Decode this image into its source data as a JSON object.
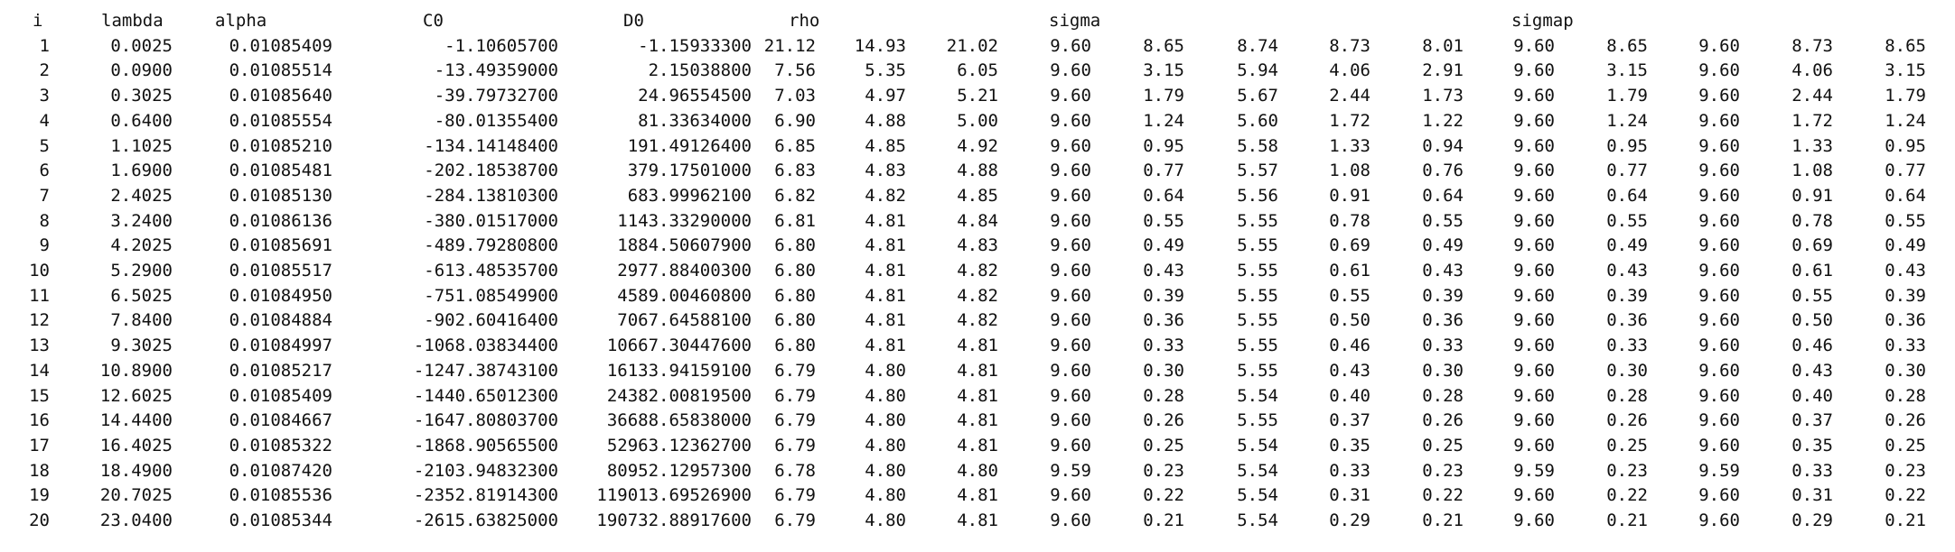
{
  "header": {
    "i": "i",
    "lambda": "lambda",
    "alpha": "alpha",
    "c0": "C0",
    "d0": "D0",
    "rho": "rho",
    "sigma": "sigma",
    "sigmap": "sigmap"
  },
  "rows": [
    [
      "1",
      "0.0025",
      "0.01085409",
      "-1.10605700",
      "-1.15933300",
      "21.12",
      "14.93",
      "21.02",
      "9.60",
      "8.65",
      "8.74",
      "8.73",
      "8.01",
      "9.60",
      "8.65",
      "9.60",
      "8.73",
      "8.65"
    ],
    [
      "2",
      "0.0900",
      "0.01085514",
      "-13.49359000",
      "2.15038800",
      "7.56",
      "5.35",
      "6.05",
      "9.60",
      "3.15",
      "5.94",
      "4.06",
      "2.91",
      "9.60",
      "3.15",
      "9.60",
      "4.06",
      "3.15"
    ],
    [
      "3",
      "0.3025",
      "0.01085640",
      "-39.79732700",
      "24.96554500",
      "7.03",
      "4.97",
      "5.21",
      "9.60",
      "1.79",
      "5.67",
      "2.44",
      "1.73",
      "9.60",
      "1.79",
      "9.60",
      "2.44",
      "1.79"
    ],
    [
      "4",
      "0.6400",
      "0.01085554",
      "-80.01355400",
      "81.33634000",
      "6.90",
      "4.88",
      "5.00",
      "9.60",
      "1.24",
      "5.60",
      "1.72",
      "1.22",
      "9.60",
      "1.24",
      "9.60",
      "1.72",
      "1.24"
    ],
    [
      "5",
      "1.1025",
      "0.01085210",
      "-134.14148400",
      "191.49126400",
      "6.85",
      "4.85",
      "4.92",
      "9.60",
      "0.95",
      "5.58",
      "1.33",
      "0.94",
      "9.60",
      "0.95",
      "9.60",
      "1.33",
      "0.95"
    ],
    [
      "6",
      "1.6900",
      "0.01085481",
      "-202.18538700",
      "379.17501000",
      "6.83",
      "4.83",
      "4.88",
      "9.60",
      "0.77",
      "5.57",
      "1.08",
      "0.76",
      "9.60",
      "0.77",
      "9.60",
      "1.08",
      "0.77"
    ],
    [
      "7",
      "2.4025",
      "0.01085130",
      "-284.13810300",
      "683.99962100",
      "6.82",
      "4.82",
      "4.85",
      "9.60",
      "0.64",
      "5.56",
      "0.91",
      "0.64",
      "9.60",
      "0.64",
      "9.60",
      "0.91",
      "0.64"
    ],
    [
      "8",
      "3.2400",
      "0.01086136",
      "-380.01517000",
      "1143.33290000",
      "6.81",
      "4.81",
      "4.84",
      "9.60",
      "0.55",
      "5.55",
      "0.78",
      "0.55",
      "9.60",
      "0.55",
      "9.60",
      "0.78",
      "0.55"
    ],
    [
      "9",
      "4.2025",
      "0.01085691",
      "-489.79280800",
      "1884.50607900",
      "6.80",
      "4.81",
      "4.83",
      "9.60",
      "0.49",
      "5.55",
      "0.69",
      "0.49",
      "9.60",
      "0.49",
      "9.60",
      "0.69",
      "0.49"
    ],
    [
      "10",
      "5.2900",
      "0.01085517",
      "-613.48535700",
      "2977.88400300",
      "6.80",
      "4.81",
      "4.82",
      "9.60",
      "0.43",
      "5.55",
      "0.61",
      "0.43",
      "9.60",
      "0.43",
      "9.60",
      "0.61",
      "0.43"
    ],
    [
      "11",
      "6.5025",
      "0.01084950",
      "-751.08549900",
      "4589.00460800",
      "6.80",
      "4.81",
      "4.82",
      "9.60",
      "0.39",
      "5.55",
      "0.55",
      "0.39",
      "9.60",
      "0.39",
      "9.60",
      "0.55",
      "0.39"
    ],
    [
      "12",
      "7.8400",
      "0.01084884",
      "-902.60416400",
      "7067.64588100",
      "6.80",
      "4.81",
      "4.82",
      "9.60",
      "0.36",
      "5.55",
      "0.50",
      "0.36",
      "9.60",
      "0.36",
      "9.60",
      "0.50",
      "0.36"
    ],
    [
      "13",
      "9.3025",
      "0.01084997",
      "-1068.03834400",
      "10667.30447600",
      "6.80",
      "4.81",
      "4.81",
      "9.60",
      "0.33",
      "5.55",
      "0.46",
      "0.33",
      "9.60",
      "0.33",
      "9.60",
      "0.46",
      "0.33"
    ],
    [
      "14",
      "10.8900",
      "0.01085217",
      "-1247.38743100",
      "16133.94159100",
      "6.79",
      "4.80",
      "4.81",
      "9.60",
      "0.30",
      "5.55",
      "0.43",
      "0.30",
      "9.60",
      "0.30",
      "9.60",
      "0.43",
      "0.30"
    ],
    [
      "15",
      "12.6025",
      "0.01085409",
      "-1440.65012300",
      "24382.00819500",
      "6.79",
      "4.80",
      "4.81",
      "9.60",
      "0.28",
      "5.54",
      "0.40",
      "0.28",
      "9.60",
      "0.28",
      "9.60",
      "0.40",
      "0.28"
    ],
    [
      "16",
      "14.4400",
      "0.01084667",
      "-1647.80803700",
      "36688.65838000",
      "6.79",
      "4.80",
      "4.81",
      "9.60",
      "0.26",
      "5.55",
      "0.37",
      "0.26",
      "9.60",
      "0.26",
      "9.60",
      "0.37",
      "0.26"
    ],
    [
      "17",
      "16.4025",
      "0.01085322",
      "-1868.90565500",
      "52963.12362700",
      "6.79",
      "4.80",
      "4.81",
      "9.60",
      "0.25",
      "5.54",
      "0.35",
      "0.25",
      "9.60",
      "0.25",
      "9.60",
      "0.35",
      "0.25"
    ],
    [
      "18",
      "18.4900",
      "0.01087420",
      "-2103.94832300",
      "80952.12957300",
      "6.78",
      "4.80",
      "4.80",
      "9.59",
      "0.23",
      "5.54",
      "0.33",
      "0.23",
      "9.59",
      "0.23",
      "9.59",
      "0.33",
      "0.23"
    ],
    [
      "19",
      "20.7025",
      "0.01085536",
      "-2352.81914300",
      "119013.69526900",
      "6.79",
      "4.80",
      "4.81",
      "9.60",
      "0.22",
      "5.54",
      "0.31",
      "0.22",
      "9.60",
      "0.22",
      "9.60",
      "0.31",
      "0.22"
    ],
    [
      "20",
      "23.0400",
      "0.01085344",
      "-2615.63825000",
      "190732.88917600",
      "6.79",
      "4.80",
      "4.81",
      "9.60",
      "0.21",
      "5.54",
      "0.29",
      "0.21",
      "9.60",
      "0.21",
      "9.60",
      "0.29",
      "0.21"
    ]
  ]
}
